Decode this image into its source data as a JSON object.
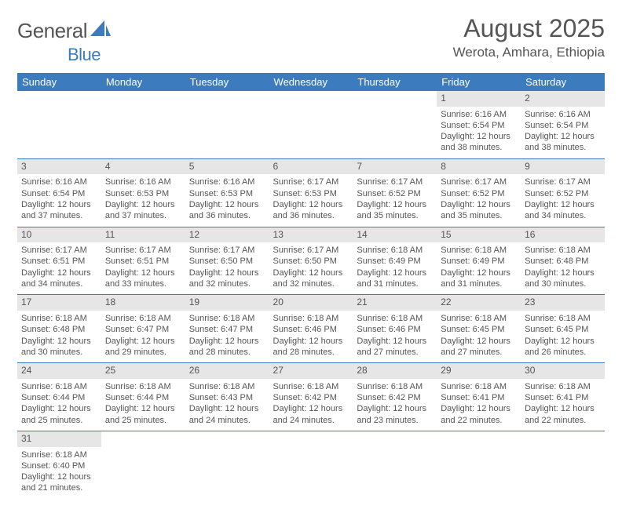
{
  "logo": {
    "text1": "General",
    "text2": "Blue"
  },
  "title": "August 2025",
  "location": "Werota, Amhara, Ethiopia",
  "colors": {
    "header_bg": "#3d7bbf",
    "header_fg": "#ffffff",
    "daynum_bg": "#e6e6e6",
    "text": "#555555",
    "row_border": "#3d7bbf"
  },
  "typography": {
    "title_fontsize": 32,
    "location_fontsize": 17,
    "header_fontsize": 13,
    "daynum_fontsize": 12,
    "body_fontsize": 11
  },
  "days_of_week": [
    "Sunday",
    "Monday",
    "Tuesday",
    "Wednesday",
    "Thursday",
    "Friday",
    "Saturday"
  ],
  "weeks": [
    [
      null,
      null,
      null,
      null,
      null,
      {
        "n": "1",
        "sr": "Sunrise: 6:16 AM",
        "ss": "Sunset: 6:54 PM",
        "d1": "Daylight: 12 hours",
        "d2": "and 38 minutes."
      },
      {
        "n": "2",
        "sr": "Sunrise: 6:16 AM",
        "ss": "Sunset: 6:54 PM",
        "d1": "Daylight: 12 hours",
        "d2": "and 38 minutes."
      }
    ],
    [
      {
        "n": "3",
        "sr": "Sunrise: 6:16 AM",
        "ss": "Sunset: 6:54 PM",
        "d1": "Daylight: 12 hours",
        "d2": "and 37 minutes."
      },
      {
        "n": "4",
        "sr": "Sunrise: 6:16 AM",
        "ss": "Sunset: 6:53 PM",
        "d1": "Daylight: 12 hours",
        "d2": "and 37 minutes."
      },
      {
        "n": "5",
        "sr": "Sunrise: 6:16 AM",
        "ss": "Sunset: 6:53 PM",
        "d1": "Daylight: 12 hours",
        "d2": "and 36 minutes."
      },
      {
        "n": "6",
        "sr": "Sunrise: 6:17 AM",
        "ss": "Sunset: 6:53 PM",
        "d1": "Daylight: 12 hours",
        "d2": "and 36 minutes."
      },
      {
        "n": "7",
        "sr": "Sunrise: 6:17 AM",
        "ss": "Sunset: 6:52 PM",
        "d1": "Daylight: 12 hours",
        "d2": "and 35 minutes."
      },
      {
        "n": "8",
        "sr": "Sunrise: 6:17 AM",
        "ss": "Sunset: 6:52 PM",
        "d1": "Daylight: 12 hours",
        "d2": "and 35 minutes."
      },
      {
        "n": "9",
        "sr": "Sunrise: 6:17 AM",
        "ss": "Sunset: 6:52 PM",
        "d1": "Daylight: 12 hours",
        "d2": "and 34 minutes."
      }
    ],
    [
      {
        "n": "10",
        "sr": "Sunrise: 6:17 AM",
        "ss": "Sunset: 6:51 PM",
        "d1": "Daylight: 12 hours",
        "d2": "and 34 minutes."
      },
      {
        "n": "11",
        "sr": "Sunrise: 6:17 AM",
        "ss": "Sunset: 6:51 PM",
        "d1": "Daylight: 12 hours",
        "d2": "and 33 minutes."
      },
      {
        "n": "12",
        "sr": "Sunrise: 6:17 AM",
        "ss": "Sunset: 6:50 PM",
        "d1": "Daylight: 12 hours",
        "d2": "and 32 minutes."
      },
      {
        "n": "13",
        "sr": "Sunrise: 6:17 AM",
        "ss": "Sunset: 6:50 PM",
        "d1": "Daylight: 12 hours",
        "d2": "and 32 minutes."
      },
      {
        "n": "14",
        "sr": "Sunrise: 6:18 AM",
        "ss": "Sunset: 6:49 PM",
        "d1": "Daylight: 12 hours",
        "d2": "and 31 minutes."
      },
      {
        "n": "15",
        "sr": "Sunrise: 6:18 AM",
        "ss": "Sunset: 6:49 PM",
        "d1": "Daylight: 12 hours",
        "d2": "and 31 minutes."
      },
      {
        "n": "16",
        "sr": "Sunrise: 6:18 AM",
        "ss": "Sunset: 6:48 PM",
        "d1": "Daylight: 12 hours",
        "d2": "and 30 minutes."
      }
    ],
    [
      {
        "n": "17",
        "sr": "Sunrise: 6:18 AM",
        "ss": "Sunset: 6:48 PM",
        "d1": "Daylight: 12 hours",
        "d2": "and 30 minutes."
      },
      {
        "n": "18",
        "sr": "Sunrise: 6:18 AM",
        "ss": "Sunset: 6:47 PM",
        "d1": "Daylight: 12 hours",
        "d2": "and 29 minutes."
      },
      {
        "n": "19",
        "sr": "Sunrise: 6:18 AM",
        "ss": "Sunset: 6:47 PM",
        "d1": "Daylight: 12 hours",
        "d2": "and 28 minutes."
      },
      {
        "n": "20",
        "sr": "Sunrise: 6:18 AM",
        "ss": "Sunset: 6:46 PM",
        "d1": "Daylight: 12 hours",
        "d2": "and 28 minutes."
      },
      {
        "n": "21",
        "sr": "Sunrise: 6:18 AM",
        "ss": "Sunset: 6:46 PM",
        "d1": "Daylight: 12 hours",
        "d2": "and 27 minutes."
      },
      {
        "n": "22",
        "sr": "Sunrise: 6:18 AM",
        "ss": "Sunset: 6:45 PM",
        "d1": "Daylight: 12 hours",
        "d2": "and 27 minutes."
      },
      {
        "n": "23",
        "sr": "Sunrise: 6:18 AM",
        "ss": "Sunset: 6:45 PM",
        "d1": "Daylight: 12 hours",
        "d2": "and 26 minutes."
      }
    ],
    [
      {
        "n": "24",
        "sr": "Sunrise: 6:18 AM",
        "ss": "Sunset: 6:44 PM",
        "d1": "Daylight: 12 hours",
        "d2": "and 25 minutes."
      },
      {
        "n": "25",
        "sr": "Sunrise: 6:18 AM",
        "ss": "Sunset: 6:44 PM",
        "d1": "Daylight: 12 hours",
        "d2": "and 25 minutes."
      },
      {
        "n": "26",
        "sr": "Sunrise: 6:18 AM",
        "ss": "Sunset: 6:43 PM",
        "d1": "Daylight: 12 hours",
        "d2": "and 24 minutes."
      },
      {
        "n": "27",
        "sr": "Sunrise: 6:18 AM",
        "ss": "Sunset: 6:42 PM",
        "d1": "Daylight: 12 hours",
        "d2": "and 24 minutes."
      },
      {
        "n": "28",
        "sr": "Sunrise: 6:18 AM",
        "ss": "Sunset: 6:42 PM",
        "d1": "Daylight: 12 hours",
        "d2": "and 23 minutes."
      },
      {
        "n": "29",
        "sr": "Sunrise: 6:18 AM",
        "ss": "Sunset: 6:41 PM",
        "d1": "Daylight: 12 hours",
        "d2": "and 22 minutes."
      },
      {
        "n": "30",
        "sr": "Sunrise: 6:18 AM",
        "ss": "Sunset: 6:41 PM",
        "d1": "Daylight: 12 hours",
        "d2": "and 22 minutes."
      }
    ],
    [
      {
        "n": "31",
        "sr": "Sunrise: 6:18 AM",
        "ss": "Sunset: 6:40 PM",
        "d1": "Daylight: 12 hours",
        "d2": "and 21 minutes."
      },
      null,
      null,
      null,
      null,
      null,
      null
    ]
  ]
}
